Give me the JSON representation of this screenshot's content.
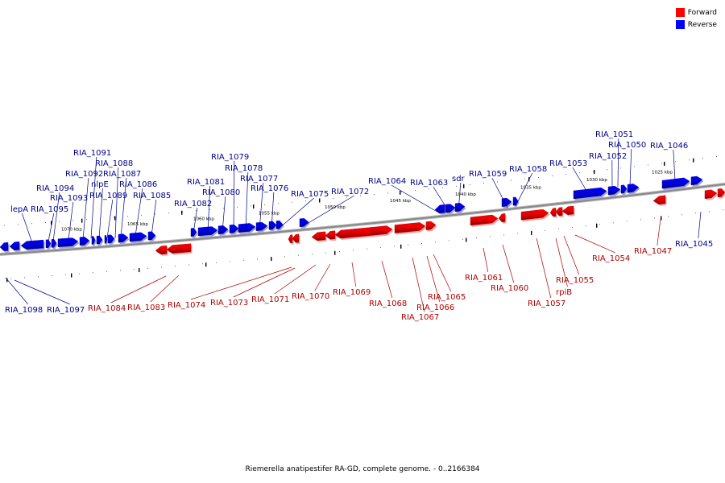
{
  "legend": {
    "forward_label": "Forward",
    "reverse_label": "Reverse",
    "forward_color": "#ff0000",
    "reverse_color": "#0000ff"
  },
  "footer": {
    "title": "Riemerella anatipestifer RA-GD, complete genome. - 0..2166384"
  },
  "diagram": {
    "backbone_color": "#888888",
    "kbp_ticks": [
      "1070 kbp",
      "1065 kbp",
      "1060 kbp",
      "1055 kbp",
      "1050 kbp",
      "1045 kbp",
      "1040 kbp",
      "1035 kbp",
      "1030 kbp",
      "1025 kbp"
    ],
    "reverse_genes": [
      "RIA_1098",
      "RIA_1097",
      "lepA",
      "RIA_1095",
      "RIA_1094",
      "RIA_1093",
      "RIA_1092",
      "RIA_1091",
      "nlpE",
      "RIA_1089",
      "RIA_1088",
      "RIA_1087",
      "RIA_1086",
      "RIA_1085",
      "RIA_1082",
      "RIA_1081",
      "RIA_1080",
      "RIA_1079",
      "RIA_1078",
      "RIA_1077",
      "RIA_1076",
      "RIA_1075",
      "RIA_1072",
      "RIA_1064",
      "RIA_1063",
      "sdr",
      "RIA_1059",
      "RIA_1058",
      "RIA_1053",
      "RIA_1052",
      "RIA_1051",
      "RIA_1050",
      "RIA_1046",
      "RIA_1045"
    ],
    "forward_genes": [
      "RIA_1084",
      "RIA_1083",
      "RIA_1074",
      "RIA_1073",
      "RIA_1071",
      "RIA_1070",
      "RIA_1069",
      "RIA_1068",
      "RIA_1067",
      "RIA_1066",
      "RIA_1065",
      "RIA_1061",
      "RIA_1060",
      "RIA_1057",
      "rpiB",
      "RIA_1055",
      "RIA_1054",
      "RIA_1047"
    ]
  }
}
